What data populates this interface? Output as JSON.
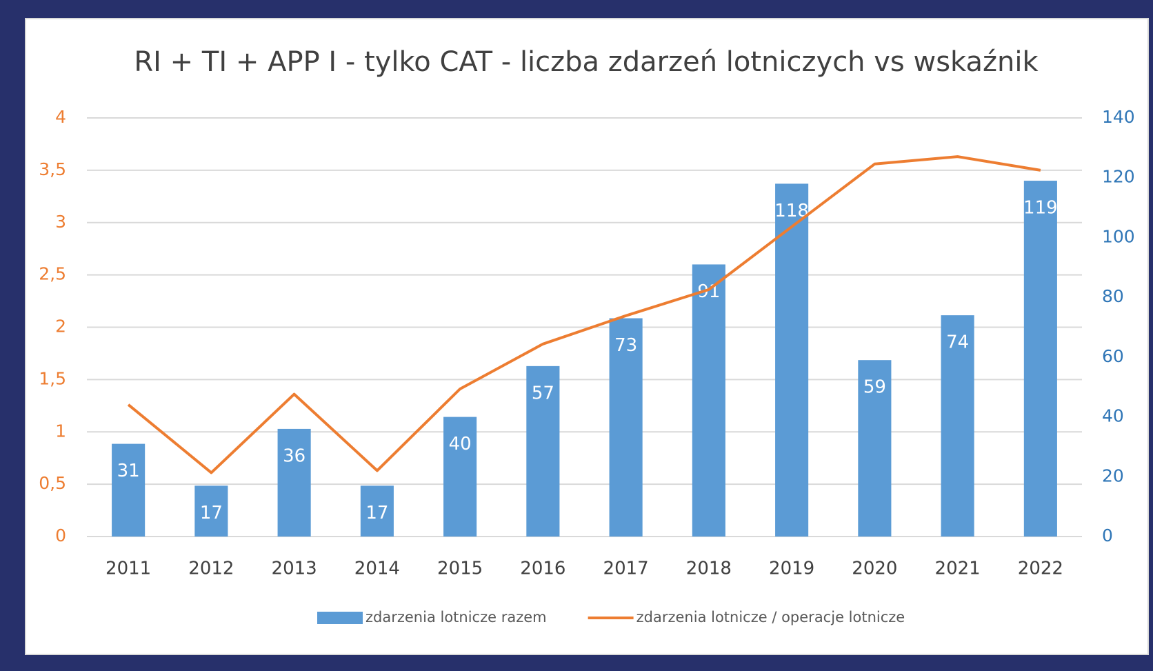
{
  "chart_data": {
    "type": "bar+line",
    "title": "RI + TI + APP I - tylko CAT - liczba zdarzeń lotniczych vs wskaźnik",
    "categories": [
      "2011",
      "2012",
      "2013",
      "2014",
      "2015",
      "2016",
      "2017",
      "2018",
      "2019",
      "2020",
      "2021",
      "2022"
    ],
    "series": [
      {
        "name": "zdarzenia lotnicze razem",
        "type": "bar",
        "axis": "y2",
        "color": "#5b9bd5",
        "values": [
          31,
          17,
          36,
          17,
          40,
          57,
          73,
          91,
          118,
          59,
          74,
          119
        ]
      },
      {
        "name": "zdarzenia lotnicze / operacje lotnicze",
        "type": "line",
        "axis": "y",
        "color": "#ed7d31",
        "values": [
          1.26,
          0.61,
          1.36,
          0.63,
          1.41,
          1.84,
          2.11,
          2.36,
          2.96,
          3.56,
          3.63,
          3.5
        ]
      }
    ],
    "ylim": [
      0,
      4
    ],
    "yticks": [
      0,
      {
        "value": 0.5,
        "label": "0,5"
      },
      1,
      {
        "value": 1.5,
        "label": "1,5"
      },
      2,
      {
        "value": 2.5,
        "label": "2,5"
      },
      3,
      {
        "value": 3.5,
        "label": "3,5"
      },
      4
    ],
    "y2lim": [
      0,
      140
    ],
    "y2ticks": [
      0,
      20,
      40,
      60,
      80,
      100,
      120,
      140
    ],
    "grid": true,
    "legend": "bottom"
  }
}
